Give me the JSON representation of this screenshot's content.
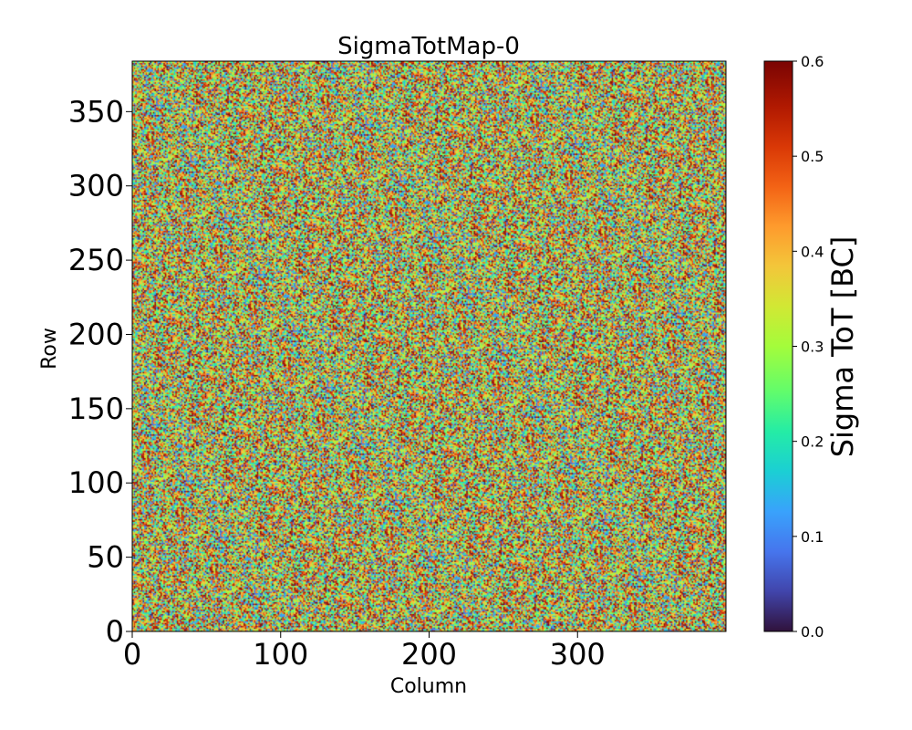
{
  "chart_data": {
    "type": "heatmap",
    "title": "SigmaTotMap-0",
    "xlabel": "Column",
    "ylabel": "Row",
    "xlim": [
      0,
      400
    ],
    "ylim": [
      0,
      384
    ],
    "x_ticks": [
      0,
      100,
      200,
      300
    ],
    "y_ticks": [
      0,
      50,
      100,
      150,
      200,
      250,
      300,
      350
    ],
    "x_tick_labels": [
      "0",
      "100",
      "200",
      "300"
    ],
    "y_tick_labels": [
      "0",
      "50",
      "100",
      "150",
      "200",
      "250",
      "300",
      "350"
    ],
    "colorbar": {
      "label": "Sigma ToT [BC]",
      "range": [
        0.0,
        0.6
      ],
      "ticks": [
        0.0,
        0.1,
        0.2,
        0.3,
        0.4,
        0.5,
        0.6
      ],
      "tick_labels": [
        "0.0",
        "0.1",
        "0.2",
        "0.3",
        "0.4",
        "0.5",
        "0.6"
      ],
      "colormap": "turbo"
    },
    "note": "Per-pixel noise map, values roughly uniform between 0.0 and 0.6 across the 400x384 matrix"
  }
}
